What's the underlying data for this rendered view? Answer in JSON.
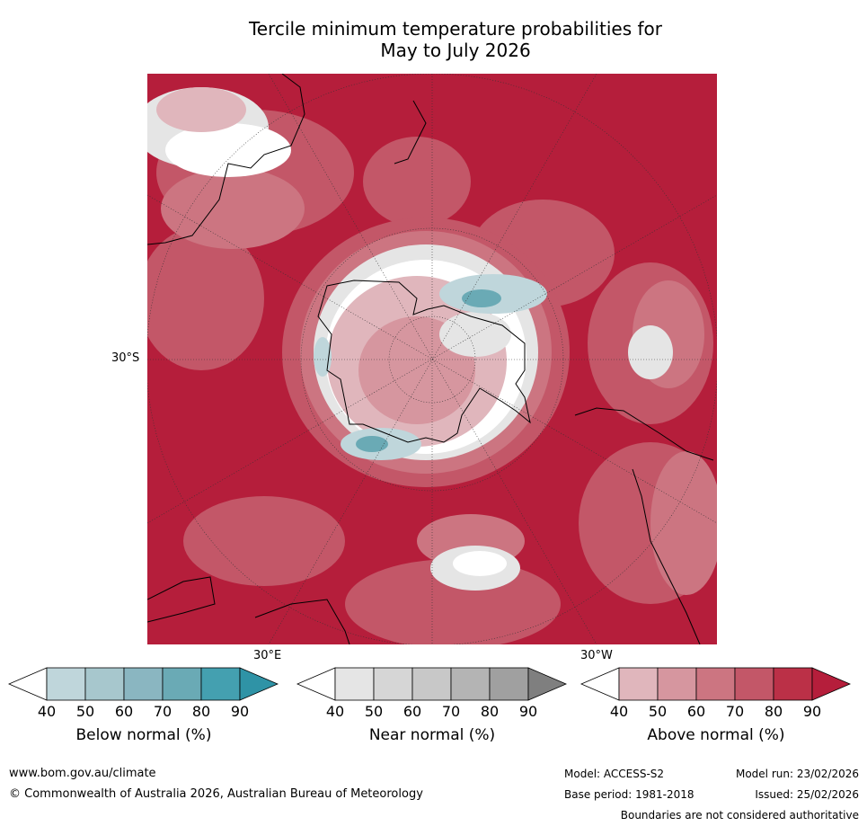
{
  "title": {
    "line1": "Tercile minimum temperature probabilities for",
    "line2": "May to July 2026"
  },
  "map": {
    "lat_label": "30°S",
    "lon_labels": {
      "east": "30°E",
      "west": "30°W"
    },
    "projection": "south-polar stereographic",
    "dominant_category": "Above normal"
  },
  "colorbars": [
    {
      "label": "Below normal (%)",
      "ticks": [
        "40",
        "50",
        "60",
        "70",
        "80",
        "90"
      ],
      "colors": [
        "#ffffff",
        "#bfd6db",
        "#a7c7cd",
        "#8ab6c1",
        "#6aaab5",
        "#44a0b0",
        "#2f93a6"
      ]
    },
    {
      "label": "Near normal (%)",
      "ticks": [
        "40",
        "50",
        "60",
        "70",
        "80",
        "90"
      ],
      "colors": [
        "#ffffff",
        "#e5e5e5",
        "#d6d6d6",
        "#c8c8c8",
        "#b4b4b4",
        "#a0a0a0",
        "#7f7f7f"
      ]
    },
    {
      "label": "Above normal (%)",
      "ticks": [
        "40",
        "50",
        "60",
        "70",
        "80",
        "90"
      ],
      "colors": [
        "#ffffff",
        "#e0b6bc",
        "#d6969f",
        "#cc7581",
        "#c35768",
        "#bb3047",
        "#b51e3b"
      ]
    }
  ],
  "footer": {
    "website": "www.bom.gov.au/climate",
    "copyright": "© Commonwealth of Australia 2026, Australian Bureau of Meteorology",
    "model": "Model: ACCESS-S2",
    "model_run": "Model run: 23/02/2026",
    "base_period": "Base period: 1981-2018",
    "issued": "Issued: 25/02/2026",
    "boundaries_note": "Boundaries are not considered authoritative"
  }
}
